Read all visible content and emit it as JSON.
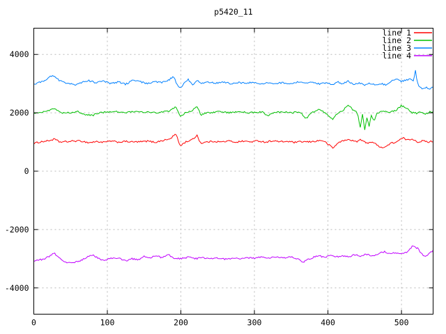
{
  "window": {
    "background": "#ffffff"
  },
  "chart_data": {
    "type": "line",
    "title": "p5420_11",
    "xlabel": "",
    "ylabel": "",
    "xlim": [
      0,
      543
    ],
    "ylim": [
      -4900,
      4900
    ],
    "x_ticks": [
      0,
      100,
      200,
      300,
      400,
      500
    ],
    "y_ticks": [
      -4000,
      -2000,
      0,
      2000,
      4000
    ],
    "grid": "dashed",
    "legend_position": "top-right-inside",
    "colors": {
      "border": "#000000",
      "grid": "#b8b8b8",
      "text": "#000000",
      "background": "#ffffff"
    },
    "series": [
      {
        "name": "line 1",
        "color": "#ff0000",
        "noise": 28,
        "points": [
          [
            0,
            950
          ],
          [
            10,
            1010
          ],
          [
            20,
            1040
          ],
          [
            28,
            1100
          ],
          [
            35,
            1000
          ],
          [
            45,
            1010
          ],
          [
            55,
            1035
          ],
          [
            65,
            1030
          ],
          [
            75,
            975
          ],
          [
            85,
            1015
          ],
          [
            95,
            990
          ],
          [
            105,
            1030
          ],
          [
            115,
            995
          ],
          [
            125,
            1020
          ],
          [
            135,
            1000
          ],
          [
            145,
            1005
          ],
          [
            155,
            1030
          ],
          [
            165,
            990
          ],
          [
            175,
            1050
          ],
          [
            185,
            1100
          ],
          [
            193,
            1280
          ],
          [
            199,
            870
          ],
          [
            207,
            1010
          ],
          [
            215,
            1070
          ],
          [
            222,
            1230
          ],
          [
            227,
            955
          ],
          [
            235,
            1000
          ],
          [
            245,
            1025
          ],
          [
            255,
            1000
          ],
          [
            265,
            1035
          ],
          [
            275,
            995
          ],
          [
            285,
            1030
          ],
          [
            295,
            1005
          ],
          [
            305,
            1040
          ],
          [
            315,
            995
          ],
          [
            325,
            1045
          ],
          [
            335,
            1005
          ],
          [
            345,
            1020
          ],
          [
            355,
            985
          ],
          [
            365,
            1010
          ],
          [
            375,
            1000
          ],
          [
            385,
            1035
          ],
          [
            392,
            1060
          ],
          [
            400,
            930
          ],
          [
            407,
            790
          ],
          [
            415,
            1000
          ],
          [
            423,
            1055
          ],
          [
            430,
            1085
          ],
          [
            438,
            1005
          ],
          [
            445,
            1080
          ],
          [
            452,
            960
          ],
          [
            460,
            1010
          ],
          [
            468,
            870
          ],
          [
            476,
            800
          ],
          [
            485,
            950
          ],
          [
            493,
            1000
          ],
          [
            502,
            1135
          ],
          [
            509,
            1060
          ],
          [
            515,
            1110
          ],
          [
            522,
            1000
          ],
          [
            529,
            1040
          ],
          [
            536,
            1000
          ],
          [
            543,
            1030
          ]
        ]
      },
      {
        "name": "line 2",
        "color": "#00c000",
        "noise": 28,
        "points": [
          [
            0,
            2000
          ],
          [
            10,
            2030
          ],
          [
            18,
            2060
          ],
          [
            27,
            2150
          ],
          [
            33,
            2090
          ],
          [
            40,
            1990
          ],
          [
            50,
            2010
          ],
          [
            60,
            2040
          ],
          [
            70,
            1950
          ],
          [
            80,
            1910
          ],
          [
            90,
            2005
          ],
          [
            100,
            2020
          ],
          [
            110,
            2050
          ],
          [
            120,
            2000
          ],
          [
            130,
            2030
          ],
          [
            140,
            2055
          ],
          [
            150,
            2010
          ],
          [
            160,
            2030
          ],
          [
            170,
            2000
          ],
          [
            180,
            2050
          ],
          [
            188,
            2100
          ],
          [
            193,
            2230
          ],
          [
            199,
            1880
          ],
          [
            207,
            2010
          ],
          [
            215,
            2060
          ],
          [
            222,
            2230
          ],
          [
            227,
            1930
          ],
          [
            235,
            2000
          ],
          [
            250,
            2030
          ],
          [
            265,
            2010
          ],
          [
            280,
            2040
          ],
          [
            295,
            2000
          ],
          [
            310,
            2030
          ],
          [
            318,
            1905
          ],
          [
            328,
            2010
          ],
          [
            340,
            2020
          ],
          [
            352,
            2000
          ],
          [
            362,
            2040
          ],
          [
            370,
            1800
          ],
          [
            378,
            2005
          ],
          [
            388,
            2120
          ],
          [
            397,
            1980
          ],
          [
            406,
            1780
          ],
          [
            414,
            2010
          ],
          [
            421,
            2100
          ],
          [
            428,
            2250
          ],
          [
            434,
            2100
          ],
          [
            440,
            2000
          ],
          [
            444,
            1500
          ],
          [
            447,
            1950
          ],
          [
            450,
            1420
          ],
          [
            453,
            1850
          ],
          [
            456,
            1550
          ],
          [
            459,
            1900
          ],
          [
            463,
            1700
          ],
          [
            467,
            2000
          ],
          [
            475,
            2060
          ],
          [
            483,
            2010
          ],
          [
            492,
            2080
          ],
          [
            500,
            2250
          ],
          [
            507,
            2160
          ],
          [
            514,
            2010
          ],
          [
            521,
            1985
          ],
          [
            528,
            2030
          ],
          [
            533,
            1950
          ],
          [
            538,
            2040
          ],
          [
            543,
            2015
          ]
        ]
      },
      {
        "name": "line 3",
        "color": "#0080ff",
        "noise": 28,
        "points": [
          [
            0,
            2960
          ],
          [
            8,
            3050
          ],
          [
            15,
            3100
          ],
          [
            25,
            3290
          ],
          [
            32,
            3150
          ],
          [
            40,
            3050
          ],
          [
            50,
            3000
          ],
          [
            58,
            2950
          ],
          [
            65,
            3050
          ],
          [
            75,
            3100
          ],
          [
            85,
            3030
          ],
          [
            95,
            3080
          ],
          [
            105,
            3000
          ],
          [
            115,
            3060
          ],
          [
            125,
            2980
          ],
          [
            135,
            3120
          ],
          [
            145,
            3060
          ],
          [
            155,
            3000
          ],
          [
            165,
            3070
          ],
          [
            175,
            3040
          ],
          [
            183,
            3120
          ],
          [
            190,
            3250
          ],
          [
            196,
            2900
          ],
          [
            200,
            2850
          ],
          [
            205,
            3060
          ],
          [
            210,
            3150
          ],
          [
            216,
            2950
          ],
          [
            222,
            3100
          ],
          [
            228,
            3000
          ],
          [
            238,
            3050
          ],
          [
            248,
            3020
          ],
          [
            258,
            3060
          ],
          [
            268,
            3000
          ],
          [
            278,
            3040
          ],
          [
            288,
            3010
          ],
          [
            298,
            3050
          ],
          [
            308,
            3000
          ],
          [
            318,
            3030
          ],
          [
            328,
            2990
          ],
          [
            338,
            3040
          ],
          [
            348,
            3000
          ],
          [
            358,
            3050
          ],
          [
            368,
            3010
          ],
          [
            378,
            3040
          ],
          [
            388,
            2990
          ],
          [
            398,
            3030
          ],
          [
            406,
            2960
          ],
          [
            413,
            3060
          ],
          [
            420,
            3000
          ],
          [
            428,
            3090
          ],
          [
            435,
            2950
          ],
          [
            442,
            3020
          ],
          [
            450,
            2960
          ],
          [
            458,
            3010
          ],
          [
            465,
            2940
          ],
          [
            472,
            3000
          ],
          [
            480,
            2960
          ],
          [
            487,
            3120
          ],
          [
            493,
            3160
          ],
          [
            499,
            3080
          ],
          [
            505,
            3120
          ],
          [
            511,
            3150
          ],
          [
            516,
            3110
          ],
          [
            519,
            3440
          ],
          [
            521,
            3100
          ],
          [
            524,
            2880
          ],
          [
            529,
            2820
          ],
          [
            535,
            2865
          ],
          [
            539,
            2830
          ],
          [
            543,
            2870
          ]
        ]
      },
      {
        "name": "line 4",
        "color": "#c000ff",
        "noise": 28,
        "points": [
          [
            0,
            -3070
          ],
          [
            8,
            -3040
          ],
          [
            15,
            -3000
          ],
          [
            22,
            -2900
          ],
          [
            28,
            -2820
          ],
          [
            34,
            -2950
          ],
          [
            42,
            -3100
          ],
          [
            50,
            -3150
          ],
          [
            57,
            -3100
          ],
          [
            65,
            -3050
          ],
          [
            72,
            -2950
          ],
          [
            80,
            -2870
          ],
          [
            88,
            -2980
          ],
          [
            95,
            -3060
          ],
          [
            103,
            -3000
          ],
          [
            110,
            -2950
          ],
          [
            118,
            -3010
          ],
          [
            126,
            -3060
          ],
          [
            134,
            -3000
          ],
          [
            142,
            -3050
          ],
          [
            150,
            -2900
          ],
          [
            158,
            -2980
          ],
          [
            166,
            -2900
          ],
          [
            174,
            -2960
          ],
          [
            182,
            -2850
          ],
          [
            190,
            -2970
          ],
          [
            200,
            -3000
          ],
          [
            210,
            -2950
          ],
          [
            220,
            -3000
          ],
          [
            230,
            -2960
          ],
          [
            240,
            -3010
          ],
          [
            250,
            -2970
          ],
          [
            260,
            -3020
          ],
          [
            270,
            -2980
          ],
          [
            280,
            -3010
          ],
          [
            290,
            -2960
          ],
          [
            300,
            -2990
          ],
          [
            310,
            -2940
          ],
          [
            320,
            -2980
          ],
          [
            330,
            -2930
          ],
          [
            340,
            -2970
          ],
          [
            350,
            -2920
          ],
          [
            358,
            -3000
          ],
          [
            365,
            -3120
          ],
          [
            372,
            -3040
          ],
          [
            380,
            -2950
          ],
          [
            388,
            -2900
          ],
          [
            396,
            -2950
          ],
          [
            404,
            -2900
          ],
          [
            412,
            -2940
          ],
          [
            420,
            -2890
          ],
          [
            428,
            -2930
          ],
          [
            436,
            -2870
          ],
          [
            444,
            -2900
          ],
          [
            452,
            -2850
          ],
          [
            460,
            -2900
          ],
          [
            468,
            -2830
          ],
          [
            476,
            -2760
          ],
          [
            484,
            -2820
          ],
          [
            492,
            -2800
          ],
          [
            500,
            -2820
          ],
          [
            508,
            -2780
          ],
          [
            515,
            -2570
          ],
          [
            522,
            -2650
          ],
          [
            528,
            -2850
          ],
          [
            533,
            -2950
          ],
          [
            538,
            -2800
          ],
          [
            543,
            -2730
          ]
        ]
      }
    ]
  }
}
